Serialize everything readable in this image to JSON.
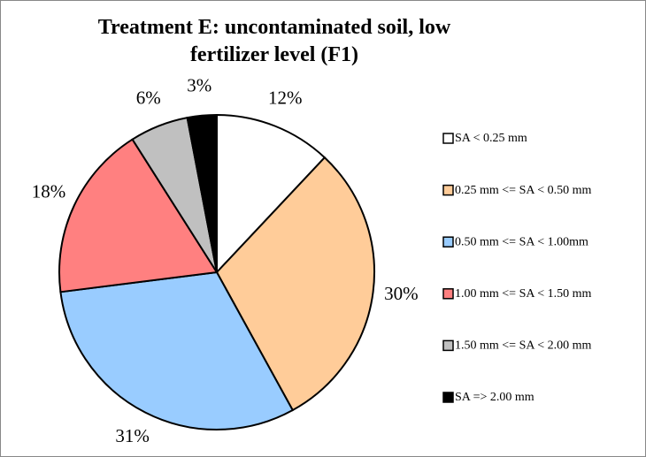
{
  "chart_data": {
    "type": "pie",
    "title": "Treatment E: uncontaminated soil, low fertilizer level (F1)",
    "categories": [
      "SA < 0.25 mm",
      "0.25 mm <= SA < 0.50 mm",
      "0.50 mm <= SA < 1.00mm",
      "1.00 mm <= SA < 1.50 mm",
      "1.50 mm <= SA < 2.00 mm",
      "SA => 2.00 mm"
    ],
    "values": [
      12,
      30,
      31,
      18,
      6,
      3
    ],
    "value_labels": [
      "12%",
      "30%",
      "31%",
      "18%",
      "6%",
      "3%"
    ],
    "colors": [
      "#ffffff",
      "#ffcc99",
      "#99ccff",
      "#ff8080",
      "#c0c0c0",
      "#000000"
    ],
    "legend": "right"
  }
}
